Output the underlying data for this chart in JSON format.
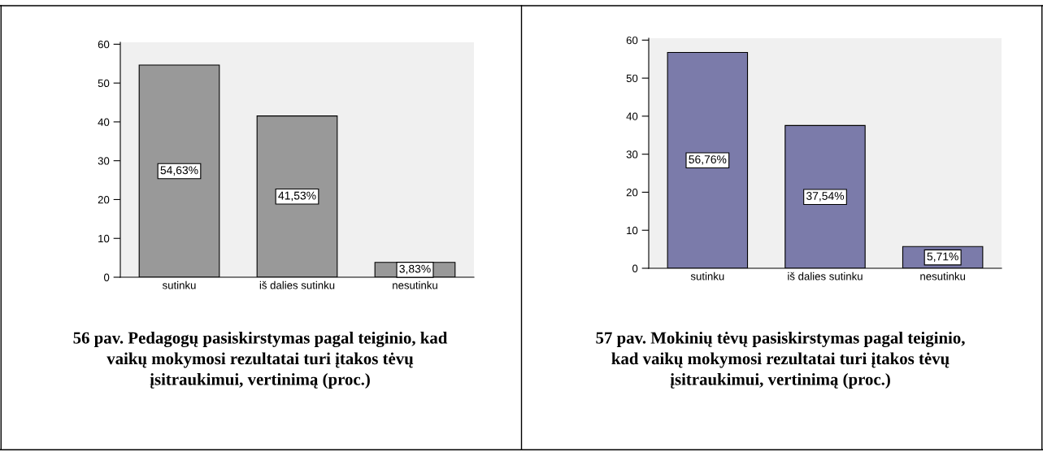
{
  "chart_data": [
    {
      "type": "bar",
      "title": "56 pav. Pedagogų pasiskirstymas pagal teiginio, kad\nvaikų mokymosi rezultatai turi įtakos tėvų\nįsitraukimui, vertinimą (proc.)",
      "categories": [
        "sutinku",
        "iš dalies sutinku",
        "nesutinku"
      ],
      "values": [
        54.63,
        41.53,
        3.83
      ],
      "value_labels": [
        "54,63%",
        "41,53%",
        "3,83%"
      ],
      "color": "#999999",
      "ylim": [
        0,
        60.5
      ],
      "yticks": [
        0,
        10,
        20,
        30,
        40,
        50,
        60
      ],
      "grid": false
    },
    {
      "type": "bar",
      "title": "57 pav. Mokinių tėvų pasiskirstymas pagal teiginio,\nkad vaikų mokymosi rezultatai turi įtakos tėvų\nįsitraukimui, vertinimą (proc.)",
      "categories": [
        "sutinku",
        "iš dalies sutinku",
        "nesutinku"
      ],
      "values": [
        56.76,
        37.54,
        5.71
      ],
      "value_labels": [
        "56,76%",
        "37,54%",
        "5,71%"
      ],
      "color": "#7b7baa",
      "ylim": [
        0,
        60.5
      ],
      "yticks": [
        0,
        10,
        20,
        30,
        40,
        50,
        60
      ],
      "grid": false
    }
  ]
}
